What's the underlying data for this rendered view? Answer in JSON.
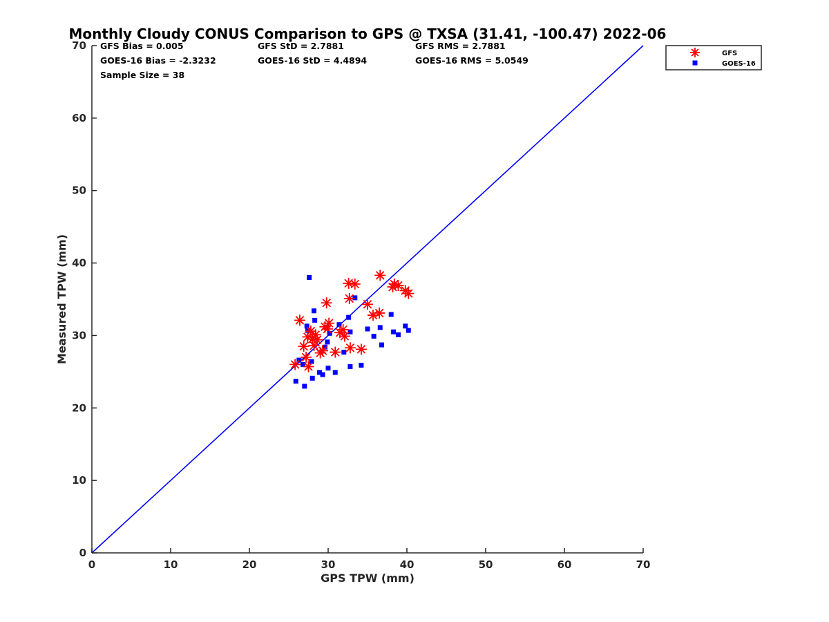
{
  "chart_data": {
    "type": "scatter",
    "title": "Monthly Cloudy CONUS Comparison to GPS @ TXSA (31.41, -100.47) 2022-06",
    "xlabel": "GPS TPW (mm)",
    "ylabel": "Measured TPW (mm)",
    "xlim": [
      0,
      70
    ],
    "ylim": [
      0,
      70
    ],
    "xticks": [
      "0",
      "10",
      "20",
      "30",
      "40",
      "50",
      "60",
      "70"
    ],
    "yticks": [
      "0",
      "10",
      "20",
      "30",
      "40",
      "50",
      "60",
      "70"
    ],
    "grid": false,
    "legend_position": "outside-top-right",
    "stats": [
      [
        "GFS Bias = 0.005",
        "GFS StD = 2.7881",
        "GFS RMS = 2.7881"
      ],
      [
        "GOES-16 Bias = -2.3232",
        "GOES-16 StD = 4.4894",
        "GOES-16 RMS = 5.0549"
      ],
      [
        "Sample Size = 38"
      ]
    ],
    "reference_line": {
      "x": [
        0,
        70
      ],
      "y": [
        0,
        70
      ],
      "color": "#0000ff"
    },
    "series": [
      {
        "name": "GFS",
        "marker": "asterisk",
        "color": "#ff0000",
        "points": [
          [
            25.8,
            26.0
          ],
          [
            26.4,
            32.1
          ],
          [
            26.9,
            28.5
          ],
          [
            27.2,
            27.0
          ],
          [
            27.5,
            25.7
          ],
          [
            27.4,
            29.8
          ],
          [
            27.8,
            30.6
          ],
          [
            28.0,
            29.5
          ],
          [
            28.2,
            28.6
          ],
          [
            28.4,
            30.1
          ],
          [
            28.6,
            29.4
          ],
          [
            29.0,
            27.6
          ],
          [
            29.3,
            27.9
          ],
          [
            29.6,
            31.2
          ],
          [
            29.8,
            34.5
          ],
          [
            29.9,
            30.9
          ],
          [
            30.1,
            31.7
          ],
          [
            30.9,
            27.7
          ],
          [
            31.5,
            30.4
          ],
          [
            31.9,
            30.8
          ],
          [
            32.1,
            29.9
          ],
          [
            32.6,
            37.2
          ],
          [
            32.7,
            35.1
          ],
          [
            32.8,
            28.3
          ],
          [
            33.4,
            37.1
          ],
          [
            34.2,
            28.1
          ],
          [
            35.0,
            34.3
          ],
          [
            35.7,
            32.8
          ],
          [
            36.5,
            33.1
          ],
          [
            36.6,
            38.3
          ],
          [
            38.2,
            36.7
          ],
          [
            38.4,
            37.1
          ],
          [
            38.9,
            36.9
          ],
          [
            39.8,
            36.2
          ],
          [
            40.2,
            35.8
          ]
        ]
      },
      {
        "name": "GOES-16",
        "marker": "square",
        "color": "#0000ff",
        "points": [
          [
            25.9,
            23.7
          ],
          [
            26.3,
            26.6
          ],
          [
            26.8,
            26.0
          ],
          [
            27.0,
            23.0
          ],
          [
            27.3,
            31.3
          ],
          [
            27.4,
            30.7
          ],
          [
            27.6,
            38.0
          ],
          [
            27.9,
            26.4
          ],
          [
            28.0,
            24.1
          ],
          [
            28.2,
            33.4
          ],
          [
            28.3,
            32.1
          ],
          [
            28.9,
            24.9
          ],
          [
            29.3,
            24.6
          ],
          [
            29.6,
            28.4
          ],
          [
            29.8,
            31.1
          ],
          [
            29.9,
            29.1
          ],
          [
            30.0,
            25.5
          ],
          [
            30.2,
            30.3
          ],
          [
            30.9,
            24.9
          ],
          [
            31.4,
            31.5
          ],
          [
            32.0,
            27.7
          ],
          [
            32.6,
            32.5
          ],
          [
            32.8,
            25.7
          ],
          [
            32.8,
            30.5
          ],
          [
            33.4,
            35.2
          ],
          [
            34.2,
            25.9
          ],
          [
            35.0,
            30.9
          ],
          [
            35.8,
            29.9
          ],
          [
            36.6,
            31.1
          ],
          [
            36.8,
            28.7
          ],
          [
            38.0,
            32.9
          ],
          [
            38.3,
            30.5
          ],
          [
            38.9,
            30.1
          ],
          [
            39.8,
            31.3
          ],
          [
            40.2,
            30.7
          ]
        ]
      }
    ]
  }
}
